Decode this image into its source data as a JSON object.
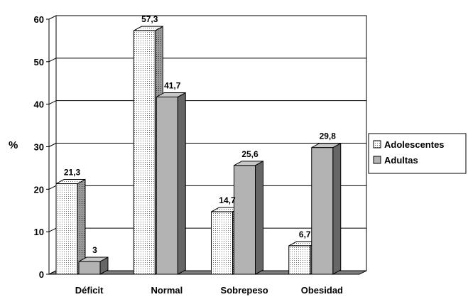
{
  "chart_data": {
    "type": "bar",
    "categories": [
      "Déficit",
      "Normal",
      "Sobrepeso",
      "Obesidad"
    ],
    "series": [
      {
        "name": "Adolescentes",
        "values": [
          21.3,
          57.3,
          14.7,
          6.7
        ],
        "labels": [
          "21,3",
          "57,3",
          "14,7",
          "6,7"
        ],
        "color": "#f2f2f2",
        "pattern": "dotted"
      },
      {
        "name": "Adultas",
        "values": [
          3,
          41.7,
          25.6,
          29.8
        ],
        "labels": [
          "3",
          "41,7",
          "25,6",
          "29,8"
        ],
        "color": "#b3b3b3",
        "pattern": "solid"
      }
    ],
    "ylabel": "%",
    "xlabel": "",
    "ylim": [
      0,
      60
    ],
    "yticks": [
      "0",
      "10",
      "20",
      "30",
      "40",
      "50",
      "60"
    ],
    "grid": true,
    "legend_position": "right",
    "style": "3d-clustered-column"
  }
}
